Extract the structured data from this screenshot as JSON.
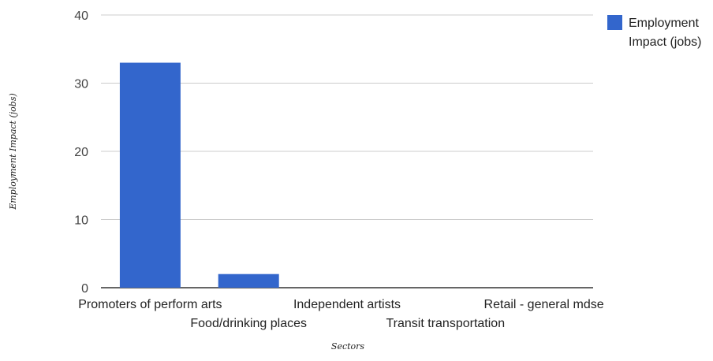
{
  "chart_data": {
    "type": "bar",
    "title": "",
    "xlabel": "Sectors",
    "ylabel": "Employment Impact (jobs)",
    "ylim": [
      0,
      40
    ],
    "yticks": [
      "0",
      "10",
      "20",
      "30",
      "40"
    ],
    "grid": true,
    "legend_position": "right",
    "categories": [
      "Promoters of perform arts",
      "Food/drinking places",
      "Independent artists",
      "Transit transportation",
      "Retail - general mdse"
    ],
    "series": [
      {
        "name": "Employment Impact (jobs)",
        "legend_lines": [
          "Employment",
          "Impact (jobs)"
        ],
        "values": [
          33,
          2,
          0,
          0,
          0
        ],
        "color": "#3366cc"
      }
    ]
  }
}
